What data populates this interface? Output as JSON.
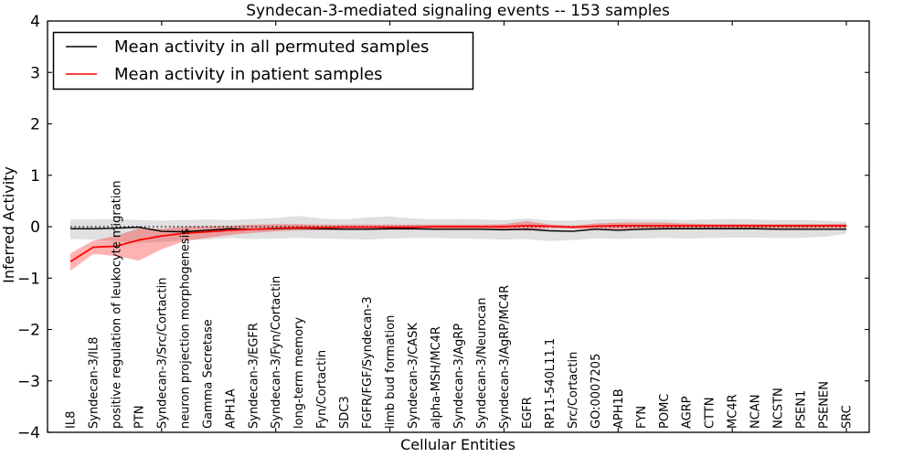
{
  "figure": {
    "title": "Syndecan-3-mediated signaling events -- 153 samples",
    "xlabel": "Cellular Entities",
    "ylabel": "Inferred Activity"
  },
  "legend": {
    "position": "upper left",
    "items": [
      {
        "label": "Mean activity in all permuted samples",
        "color": "#000000"
      },
      {
        "label": "Mean activity in patient samples",
        "color": "#ff0000"
      }
    ]
  },
  "chart_data": {
    "type": "line",
    "title": "Syndecan-3-mediated signaling events -- 153 samples",
    "xlabel": "Cellular Entities",
    "ylabel": "Inferred Activity",
    "ylim": [
      -4,
      4
    ],
    "yticks": [
      4,
      3,
      2,
      1,
      0,
      -1,
      -2,
      -3,
      -4
    ],
    "xtick_positions": [
      0,
      5,
      10,
      15,
      20,
      25,
      30,
      35
    ],
    "grid": false,
    "legend_position": "upper left",
    "background": "#ffffff",
    "categories": [
      "IL8",
      "Syndecan-3/IL8",
      "positive regulation of leukocyte migration",
      "PTN",
      "Syndecan-3/Src/Cortactin",
      "neuron projection morphogenesis",
      "Gamma Secretase",
      "APH1A",
      "Syndecan-3/EGFR",
      "Syndecan-3/Fyn/Cortactin",
      "long-term memory",
      "Fyn/Cortactin",
      "SDC3",
      "FGFR/FGF/Syndecan-3",
      "limb bud formation",
      "Syndecan-3/CASK",
      "alpha-MSH/MC4R",
      "Syndecan-3/AgRP",
      "Syndecan-3/Neurocan",
      "Syndecan-3/AgRP/MC4R",
      "EGFR",
      "RP11-540L11.1",
      "Src/Cortactin",
      "GO:0007205",
      "APH1B",
      "FYN",
      "POMC",
      "AGRP",
      "CTTN",
      "MC4R",
      "NCAN",
      "NCSTN",
      "PSEN1",
      "PSENEN",
      "SRC"
    ],
    "baseline": {
      "value": 0,
      "color": "#000000",
      "style": "dotted"
    },
    "series": [
      {
        "name": "Mean activity in all permuted samples",
        "color": "#000000",
        "style": "solid",
        "values": [
          -0.04,
          -0.04,
          -0.03,
          -0.01,
          -0.09,
          -0.1,
          -0.07,
          -0.04,
          -0.05,
          -0.04,
          -0.03,
          -0.04,
          -0.05,
          -0.05,
          -0.04,
          -0.04,
          -0.05,
          -0.05,
          -0.05,
          -0.06,
          -0.05,
          -0.08,
          -0.09,
          -0.05,
          -0.07,
          -0.05,
          -0.04,
          -0.04,
          -0.04,
          -0.04,
          -0.04,
          -0.05,
          -0.05,
          -0.05,
          -0.05
        ]
      },
      {
        "name": "Mean activity in patient samples",
        "color": "#ff0000",
        "style": "solid",
        "values": [
          -0.68,
          -0.4,
          -0.38,
          -0.26,
          -0.18,
          -0.13,
          -0.1,
          -0.07,
          -0.05,
          -0.03,
          -0.02,
          -0.02,
          -0.01,
          -0.01,
          -0.01,
          -0.01,
          0.0,
          0.0,
          0.0,
          0.0,
          0.02,
          0.01,
          -0.01,
          0.01,
          0.02,
          0.02,
          0.02,
          0.02,
          0.02,
          0.02,
          0.02,
          0.02,
          0.02,
          0.02,
          0.02
        ]
      }
    ],
    "bands": [
      {
        "name": "permuted samples envelope",
        "color": "rgba(0,0,0,0.12)",
        "upper": [
          0.14,
          0.14,
          0.15,
          0.13,
          0.12,
          0.13,
          0.14,
          0.13,
          0.15,
          0.17,
          0.21,
          0.16,
          0.14,
          0.18,
          0.2,
          0.16,
          0.14,
          0.15,
          0.14,
          0.13,
          0.16,
          0.12,
          0.12,
          0.14,
          0.15,
          0.14,
          0.14,
          0.13,
          0.14,
          0.15,
          0.14,
          0.13,
          0.13,
          0.12,
          0.1
        ],
        "lower": [
          -0.24,
          -0.25,
          -0.28,
          -0.32,
          -0.3,
          -0.26,
          -0.25,
          -0.22,
          -0.24,
          -0.23,
          -0.22,
          -0.23,
          -0.24,
          -0.25,
          -0.23,
          -0.22,
          -0.22,
          -0.23,
          -0.24,
          -0.25,
          -0.24,
          -0.28,
          -0.26,
          -0.23,
          -0.24,
          -0.23,
          -0.22,
          -0.23,
          -0.22,
          -0.21,
          -0.21,
          -0.22,
          -0.22,
          -0.2,
          -0.14
        ]
      },
      {
        "name": "patient samples envelope",
        "color": "rgba(255,0,0,0.30)",
        "upper": [
          -0.52,
          -0.27,
          -0.18,
          -0.03,
          -0.04,
          0.0,
          0.01,
          0.02,
          0.04,
          0.05,
          0.05,
          0.04,
          0.04,
          0.04,
          0.04,
          0.04,
          0.04,
          0.04,
          0.04,
          0.05,
          0.11,
          0.04,
          0.02,
          0.06,
          0.08,
          0.08,
          0.08,
          0.06,
          0.05,
          0.05,
          0.05,
          0.05,
          0.05,
          0.05,
          0.06
        ],
        "lower": [
          -0.86,
          -0.53,
          -0.57,
          -0.66,
          -0.44,
          -0.28,
          -0.22,
          -0.16,
          -0.12,
          -0.09,
          -0.07,
          -0.07,
          -0.06,
          -0.06,
          -0.06,
          -0.06,
          -0.05,
          -0.05,
          -0.05,
          -0.05,
          -0.08,
          -0.03,
          -0.04,
          -0.05,
          -0.06,
          -0.06,
          -0.06,
          -0.05,
          -0.04,
          -0.04,
          -0.04,
          -0.04,
          -0.04,
          -0.03,
          -0.03
        ]
      }
    ]
  }
}
